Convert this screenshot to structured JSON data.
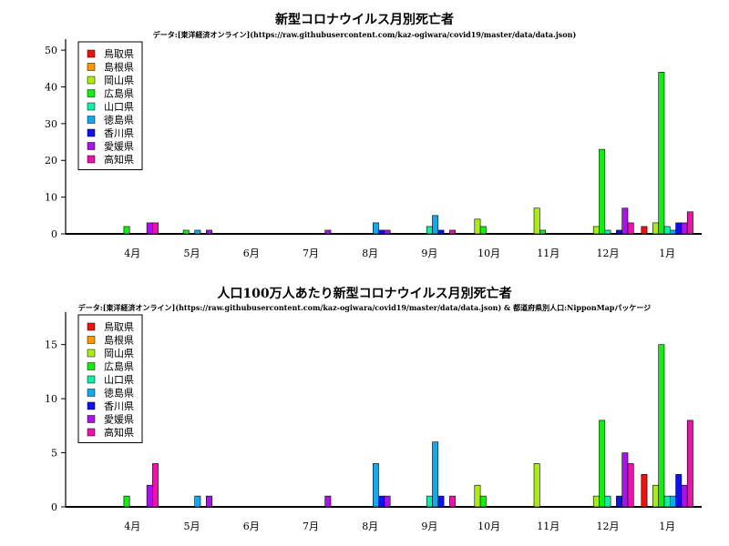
{
  "chart_data": [
    {
      "type": "bar",
      "title": "新型コロナウイルス月別死亡者",
      "subtitle": "データ:[東洋経済オンライン](https://raw.githubusercontent.com/kaz-ogiwara/covid19/master/data/data.json)",
      "xlabel": "",
      "ylabel": "",
      "ylim": [
        0,
        53
      ],
      "yticks": [
        0,
        10,
        20,
        30,
        40,
        50
      ],
      "legend_position": "top-left",
      "categories": [
        "4月",
        "5月",
        "6月",
        "7月",
        "8月",
        "9月",
        "10月",
        "11月",
        "12月",
        "1月"
      ],
      "series": [
        {
          "name": "鳥取県",
          "color": "#ee1111",
          "values": [
            0,
            0,
            0,
            0,
            0,
            0,
            0,
            0,
            0,
            2
          ]
        },
        {
          "name": "島根県",
          "color": "#ff9900",
          "values": [
            0,
            0,
            0,
            0,
            0,
            0,
            0,
            0,
            0,
            0
          ]
        },
        {
          "name": "岡山県",
          "color": "#aaee11",
          "values": [
            0,
            0,
            0,
            0,
            0,
            0,
            4,
            7,
            2,
            3
          ]
        },
        {
          "name": "広島県",
          "color": "#11ee11",
          "values": [
            2,
            1,
            0,
            0,
            0,
            0,
            2,
            1,
            23,
            44
          ]
        },
        {
          "name": "山口県",
          "color": "#11eeaa",
          "values": [
            0,
            0,
            0,
            0,
            0,
            2,
            0,
            0,
            1,
            2
          ]
        },
        {
          "name": "徳島県",
          "color": "#11aaee",
          "values": [
            0,
            1,
            0,
            0,
            3,
            5,
            0,
            0,
            0,
            1
          ]
        },
        {
          "name": "香川県",
          "color": "#1111ee",
          "values": [
            0,
            0,
            0,
            0,
            1,
            1,
            0,
            0,
            1,
            3
          ]
        },
        {
          "name": "愛媛県",
          "color": "#aa11ee",
          "values": [
            3,
            1,
            0,
            1,
            1,
            0,
            0,
            0,
            7,
            3
          ]
        },
        {
          "name": "高知県",
          "color": "#ee11aa",
          "values": [
            3,
            0,
            0,
            0,
            0,
            1,
            0,
            0,
            3,
            6
          ]
        }
      ]
    },
    {
      "type": "bar",
      "title": "人口100万人あたり新型コロナウイルス月別死亡者",
      "subtitle": "データ:[東洋経済オンライン](https://raw.githubusercontent.com/kaz-ogiwara/covid19/master/data/data.json) & 都道府県別人口:NipponMapパッケージ",
      "xlabel": "",
      "ylabel": "",
      "ylim": [
        0,
        18
      ],
      "yticks": [
        0,
        5,
        10,
        15
      ],
      "legend_position": "top-left",
      "categories": [
        "4月",
        "5月",
        "6月",
        "7月",
        "8月",
        "9月",
        "10月",
        "11月",
        "12月",
        "1月"
      ],
      "series": [
        {
          "name": "鳥取県",
          "color": "#ee1111",
          "values": [
            0,
            0,
            0,
            0,
            0,
            0,
            0,
            0,
            0,
            3
          ]
        },
        {
          "name": "島根県",
          "color": "#ff9900",
          "values": [
            0,
            0,
            0,
            0,
            0,
            0,
            0,
            0,
            0,
            0
          ]
        },
        {
          "name": "岡山県",
          "color": "#aaee11",
          "values": [
            0,
            0,
            0,
            0,
            0,
            0,
            2,
            4,
            1,
            2
          ]
        },
        {
          "name": "広島県",
          "color": "#11ee11",
          "values": [
            1,
            0,
            0,
            0,
            0,
            0,
            1,
            0,
            8,
            15
          ]
        },
        {
          "name": "山口県",
          "color": "#11eeaa",
          "values": [
            0,
            0,
            0,
            0,
            0,
            1,
            0,
            0,
            1,
            1
          ]
        },
        {
          "name": "徳島県",
          "color": "#11aaee",
          "values": [
            0,
            1,
            0,
            0,
            4,
            6,
            0,
            0,
            0,
            1
          ]
        },
        {
          "name": "香川県",
          "color": "#1111ee",
          "values": [
            0,
            0,
            0,
            0,
            1,
            1,
            0,
            0,
            1,
            3
          ]
        },
        {
          "name": "愛媛県",
          "color": "#aa11ee",
          "values": [
            2,
            1,
            0,
            1,
            1,
            0,
            0,
            0,
            5,
            2
          ]
        },
        {
          "name": "高知県",
          "color": "#ee11aa",
          "values": [
            4,
            0,
            0,
            0,
            0,
            1,
            0,
            0,
            4,
            8
          ]
        }
      ]
    }
  ]
}
